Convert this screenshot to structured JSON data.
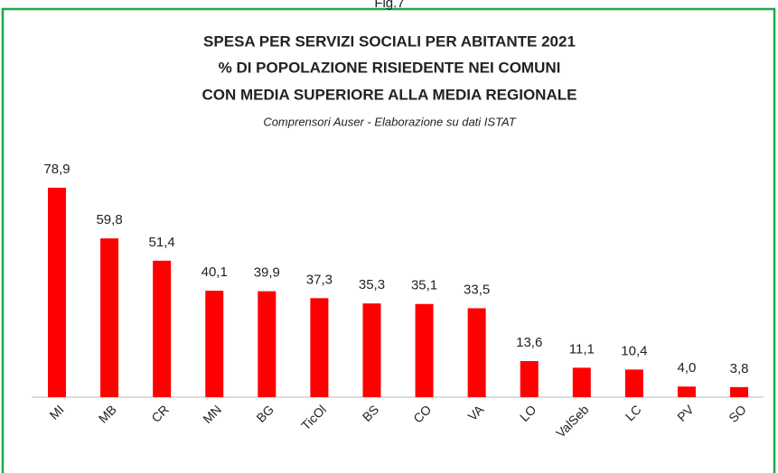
{
  "chart_data": {
    "type": "bar",
    "figure_label": "Fig.7",
    "title": [
      "SPESA PER SERVIZI SOCIALI PER ABITANTE 2021",
      "% DI POPOLAZIONE RISIEDENTE NEI COMUNI",
      "CON MEDIA SUPERIORE ALLA MEDIA REGIONALE"
    ],
    "subtitle": "Comprensori Auser - Elaborazione su dati ISTAT",
    "categories": [
      "MI",
      "MB",
      "CR",
      "MN",
      "BG",
      "TicOl",
      "BS",
      "CO",
      "VA",
      "LO",
      "ValSeb",
      "LC",
      "PV",
      "SO"
    ],
    "values": [
      78.9,
      59.8,
      51.4,
      40.1,
      39.9,
      37.3,
      35.3,
      35.1,
      33.5,
      13.6,
      11.1,
      10.4,
      4.0,
      3.8
    ],
    "value_labels": [
      "78,9",
      "59,8",
      "51,4",
      "40,1",
      "39,9",
      "37,3",
      "35,3",
      "35,1",
      "33,5",
      "13,6",
      "11,1",
      "10,4",
      "4,0",
      "3,8"
    ],
    "color": "#ff0000",
    "ylim": [
      0,
      85
    ]
  }
}
